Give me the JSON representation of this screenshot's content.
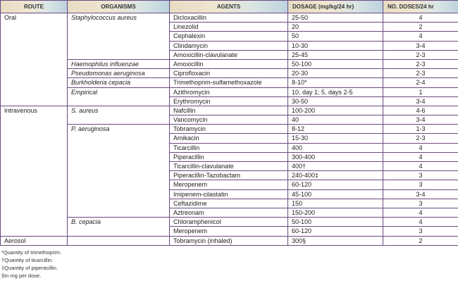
{
  "headers": {
    "route": "ROUTE",
    "organisms": "ORGANISMS",
    "agents": "AGENTS",
    "dosage": "DOSAGE (mg/kg/24 hr)",
    "doses": "NO. DOSES/24 hr"
  },
  "rows": [
    {
      "route": "Oral",
      "organism": "Staphylococcus aureus",
      "agent": "Dicloxacillin",
      "dosage": "25-50",
      "doses": "4"
    },
    {
      "agent": "Linezolid",
      "dosage": "20",
      "doses": "2"
    },
    {
      "agent": "Cephalexin",
      "dosage": "50",
      "doses": "4"
    },
    {
      "agent": "Clindamycin",
      "dosage": "10-30",
      "doses": "3-4"
    },
    {
      "agent": "Amoxicillin-clavulanate",
      "dosage": "25-45",
      "doses": "2-3"
    },
    {
      "organism": "Haemophilus influenzae",
      "agent": "Amoxicillin",
      "dosage": "50-100",
      "doses": "2-3"
    },
    {
      "organism": "Pseudomonas aeruginosa",
      "agent": "Ciprofloxacin",
      "dosage": "20-30",
      "doses": "2-3"
    },
    {
      "organism": "Burkholderia cepacia",
      "agent": "Trimethoprim-sulfamethoxazole",
      "dosage": "8-10*",
      "doses": "2-4"
    },
    {
      "organism": "Empirical",
      "agent": "Azithromycin",
      "dosage": "10, day 1; 5, days 2-5",
      "doses": "1"
    },
    {
      "agent": "Erythromycin",
      "dosage": "30-50",
      "doses": "3-4"
    },
    {
      "route": "Intravenous",
      "organism": "S. aureus",
      "agent": "Nafcillin",
      "dosage": "100-200",
      "doses": "4-6"
    },
    {
      "agent": "Vancomycin",
      "dosage": "40",
      "doses": "3-4"
    },
    {
      "organism": "P. aeruginosa",
      "agent": "Tobramycin",
      "dosage": "8-12",
      "doses": "1-3"
    },
    {
      "agent": "Amikacin",
      "dosage": "15-30",
      "doses": "2-3"
    },
    {
      "agent": "Ticarcillin",
      "dosage": "400",
      "doses": "4"
    },
    {
      "agent": "Piperacillin",
      "dosage": "300-400",
      "doses": "4"
    },
    {
      "agent": "Ticarcillin-clavulanate",
      "dosage": "400†",
      "doses": "4"
    },
    {
      "agent": "Piperacillin-Tazobactam",
      "dosage": "240-400‡",
      "doses": "3"
    },
    {
      "agent": "Meropenem",
      "dosage": "60-120",
      "doses": "3"
    },
    {
      "agent": "Imipenem-cilastatin",
      "dosage": "45-100",
      "doses": "3-4"
    },
    {
      "agent": "Ceftazidime",
      "dosage": "150",
      "doses": "3"
    },
    {
      "agent": "Aztreonam",
      "dosage": "150-200",
      "doses": "4"
    },
    {
      "organism": "B. cepacia",
      "agent": "Chloramphenicol",
      "dosage": "50-100",
      "doses": "4"
    },
    {
      "agent": "Meropenem",
      "dosage": "60-120",
      "doses": "3"
    },
    {
      "route": "Aerosol",
      "organism": "",
      "agent": "Tobramycin (inhaled)",
      "dosage": "300§",
      "doses": "2"
    }
  ],
  "spans": {
    "route": [
      [
        0,
        10
      ],
      [
        10,
        14
      ],
      [
        24,
        1
      ]
    ],
    "organism": [
      [
        0,
        5
      ],
      [
        5,
        1
      ],
      [
        6,
        1
      ],
      [
        7,
        1
      ],
      [
        8,
        2
      ],
      [
        10,
        2
      ],
      [
        12,
        10
      ],
      [
        22,
        2
      ],
      [
        24,
        1
      ]
    ]
  },
  "footnotes": [
    "*Quantity of trimethoprim.",
    "†Quantity of ticarcillin.",
    "‡Quantity of piperacillin.",
    "§In mg per dose."
  ],
  "colors": {
    "border": "#6a4a7e",
    "header_left": "#e8dcc2",
    "header_right": "#bcd3de"
  }
}
